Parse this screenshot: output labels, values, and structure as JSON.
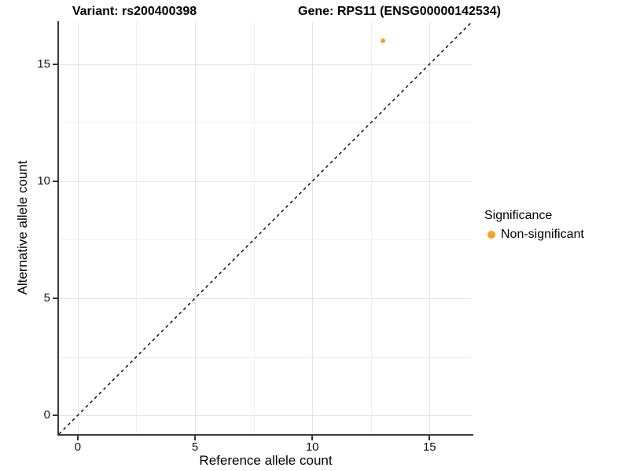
{
  "title": {
    "variant": "Variant: rs200400398",
    "gene": "Gene: RPS11 (ENSG00000142534)"
  },
  "x_axis": {
    "label": "Reference allele count",
    "tick_labels": [
      "0",
      "5",
      "10",
      "15"
    ]
  },
  "y_axis": {
    "label": "Alternative allele count",
    "tick_labels": [
      "0",
      "5",
      "10",
      "15"
    ]
  },
  "legend": {
    "title": "Significance",
    "items": [
      {
        "label": "Non-significant",
        "color": "#FAA028"
      }
    ]
  },
  "chart_data": {
    "type": "scatter",
    "title": "Variant: rs200400398   Gene: RPS11 (ENSG00000142534)",
    "xlabel": "Reference allele count",
    "ylabel": "Alternative allele count",
    "xlim": [
      -0.8,
      16.8
    ],
    "ylim": [
      -0.8,
      16.8
    ],
    "x_ticks": [
      0,
      5,
      10,
      15
    ],
    "y_ticks": [
      0,
      5,
      10,
      15
    ],
    "minor_ticks_x": [
      2.5,
      7.5,
      12.5
    ],
    "minor_ticks_y": [
      2.5,
      7.5,
      12.5
    ],
    "grid": "major and minor, light gray on white",
    "legend_position": "right",
    "series": [
      {
        "name": "Non-significant",
        "color": "#FAA028",
        "points": [
          {
            "x": 13,
            "y": 16
          }
        ]
      }
    ],
    "reference_line": {
      "type": "identity",
      "equation": "y = x",
      "style": "dashed",
      "color": "#000000"
    }
  }
}
